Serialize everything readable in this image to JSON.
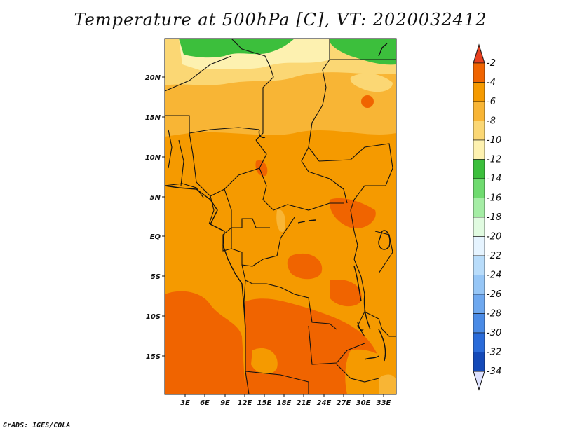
{
  "title": "Temperature at 500hPa [C], VT: 2020032412",
  "credit": "GrADS: IGES/COLA",
  "map": {
    "lat_labels": [
      "20N",
      "15N",
      "10N",
      "5N",
      "EQ",
      "5S",
      "10S",
      "15S"
    ],
    "lon_labels": [
      "3E",
      "6E",
      "9E",
      "12E",
      "15E",
      "18E",
      "21E",
      "24E",
      "27E",
      "30E",
      "33E"
    ]
  },
  "colorbar": {
    "labels": [
      "-2",
      "-4",
      "-6",
      "-8",
      "-10",
      "-12",
      "-14",
      "-16",
      "-18",
      "-20",
      "-22",
      "-24",
      "-26",
      "-28",
      "-30",
      "-32",
      "-34"
    ],
    "colors": [
      "#e8401f",
      "#f06400",
      "#f59a00",
      "#f8b535",
      "#fbd774",
      "#fdf1b0",
      "#3cbf3c",
      "#6fdb6f",
      "#a5eda5",
      "#e1fbe1",
      "#e6f4ff",
      "#b8dcfa",
      "#96c6f6",
      "#6ea8ef",
      "#4a8be6",
      "#2a6bd9",
      "#1449b8",
      "#0a1f7a",
      "#dde1ff"
    ]
  },
  "palette": {
    "deep_orange": "#f06400",
    "orange": "#f59a00",
    "light_orange": "#f8b535",
    "pale_yellow": "#fbd774",
    "cream": "#fdf1b0",
    "green": "#3cbf3c",
    "border": "#111111"
  }
}
